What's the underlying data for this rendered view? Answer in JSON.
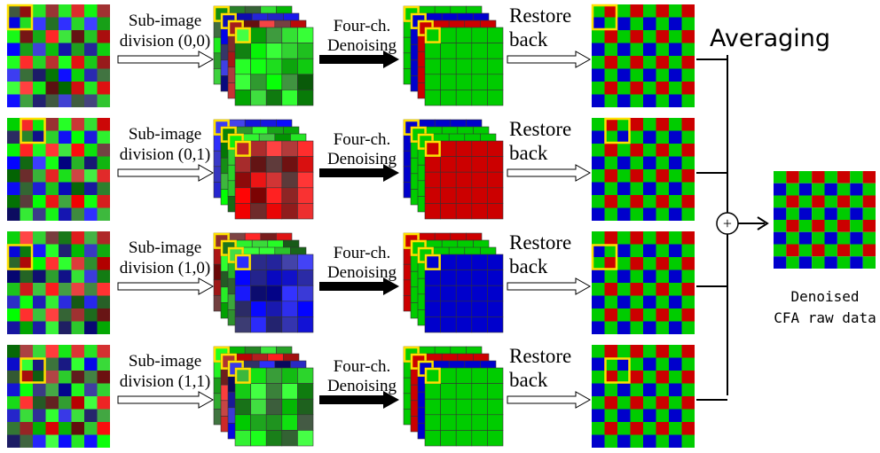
{
  "title": "Averaging",
  "operator": "+",
  "output": {
    "lines": [
      "Denoised",
      "CFA raw data"
    ]
  },
  "rows": [
    {
      "division": [
        "Sub-image",
        "division (0,0)"
      ],
      "denoise": [
        "Four-ch.",
        "Denoising"
      ],
      "restore": [
        "Restore",
        "back"
      ]
    },
    {
      "division": [
        "Sub-image",
        "division (0,1)"
      ],
      "denoise": [
        "Four-ch.",
        "Denoising"
      ],
      "restore": [
        "Restore",
        "back"
      ]
    },
    {
      "division": [
        "Sub-image",
        "division (1,0)"
      ],
      "denoise": [
        "Four-ch.",
        "Denoising"
      ],
      "restore": [
        "Restore",
        "back"
      ]
    },
    {
      "division": [
        "Sub-image",
        "division (1,1)"
      ],
      "denoise": [
        "Four-ch.",
        "Denoising"
      ],
      "restore": [
        "Restore",
        "back"
      ]
    }
  ]
}
